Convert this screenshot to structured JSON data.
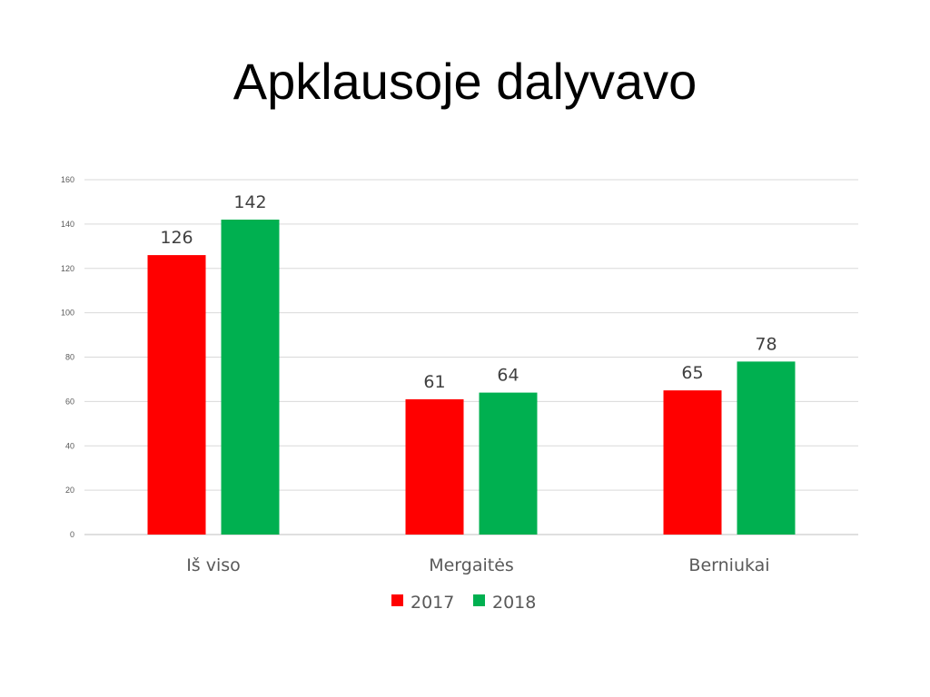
{
  "slide": {
    "title": "Apklausoje dalyvavo"
  },
  "chart_data": {
    "type": "bar",
    "title": "",
    "xlabel": "",
    "ylabel": "",
    "categories": [
      "Iš viso",
      "Mergaitės",
      "Berniukai"
    ],
    "series": [
      {
        "name": "2017",
        "values": [
          126,
          61,
          65
        ],
        "color": "#ff0000"
      },
      {
        "name": "2018",
        "values": [
          142,
          64,
          78
        ],
        "color": "#00b050"
      }
    ],
    "ylim": [
      0,
      160
    ],
    "yticks": [
      0,
      20,
      40,
      60,
      80,
      100,
      120,
      140,
      160
    ],
    "grid": true,
    "legend_position": "bottom"
  }
}
